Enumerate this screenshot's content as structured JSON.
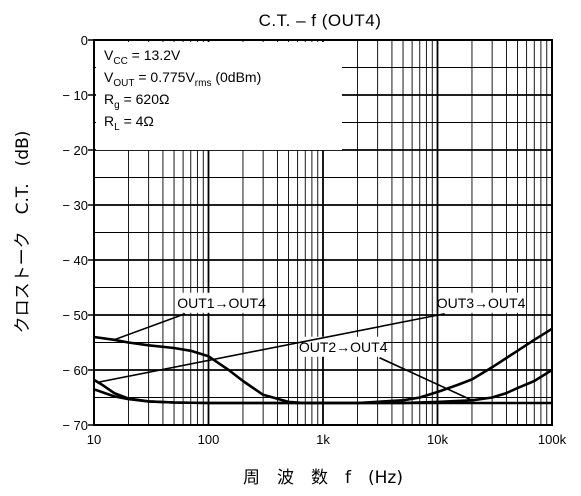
{
  "chart_data": {
    "type": "line",
    "title": "C.T.  –  f (OUT4)",
    "xlabel": "周　波　数　f　(Hz)",
    "ylabel": "クロストーク　C.T.　(dB)",
    "x_scale": "log",
    "xlim": [
      10,
      100000
    ],
    "ylim": [
      -70,
      0
    ],
    "grid": true,
    "x_ticks": [
      {
        "value": 10,
        "label": "10"
      },
      {
        "value": 100,
        "label": "100"
      },
      {
        "value": 1000,
        "label": "1k"
      },
      {
        "value": 10000,
        "label": "10k"
      },
      {
        "value": 100000,
        "label": "100k"
      }
    ],
    "y_ticks": [
      {
        "value": 0,
        "label": "0"
      },
      {
        "value": -10,
        "label": "− 10"
      },
      {
        "value": -20,
        "label": "− 20"
      },
      {
        "value": -30,
        "label": "− 30"
      },
      {
        "value": -40,
        "label": "− 40"
      },
      {
        "value": -50,
        "label": "− 50"
      },
      {
        "value": -60,
        "label": "− 60"
      },
      {
        "value": -70,
        "label": "− 70"
      }
    ],
    "conditions": [
      {
        "main": "V",
        "sub": "CC",
        "rest": " = 13.2V"
      },
      {
        "main": "V",
        "sub": "OUT",
        "rest": " = 0.775V",
        "sub2": "rms",
        "rest2": " (0dBm)"
      },
      {
        "main": "R",
        "sub": "g",
        "rest": " = 620Ω"
      },
      {
        "main": "R",
        "sub": "L",
        "rest": " = 4Ω"
      }
    ],
    "series": [
      {
        "name": "OUT1→OUT4",
        "x": [
          10,
          15,
          20,
          30,
          50,
          70,
          100,
          150,
          200,
          300,
          500,
          700,
          1000,
          2000,
          5000,
          10000,
          20000,
          50000,
          100000
        ],
        "y": [
          -54,
          -54.5,
          -55,
          -55.5,
          -56,
          -56.5,
          -57.5,
          -60,
          -62,
          -64.5,
          -65.8,
          -66,
          -66,
          -66,
          -66,
          -66,
          -66,
          -66,
          -66
        ],
        "annotation_at": [
          15,
          -54.5
        ],
        "label_at": [
          130,
          -48.5
        ]
      },
      {
        "name": "OUT2→OUT4",
        "x": [
          10,
          15,
          20,
          30,
          50,
          100,
          200,
          500,
          1000,
          2000,
          5000,
          10000,
          20000,
          30000,
          40000,
          50000,
          70000,
          100000
        ],
        "y": [
          -63.5,
          -64.8,
          -65.3,
          -65.7,
          -65.9,
          -66,
          -66,
          -66,
          -66,
          -66,
          -66,
          -65.8,
          -65.5,
          -65,
          -64.2,
          -63.3,
          -62,
          -60
        ],
        "annotation_at": [
          20000,
          -65.5
        ],
        "label_at": [
          1500,
          -56.5
        ]
      },
      {
        "name": "OUT3→OUT4",
        "x": [
          10,
          12,
          15,
          20,
          30,
          50,
          100,
          200,
          500,
          1000,
          2000,
          5000,
          7000,
          10000,
          15000,
          20000,
          30000,
          50000,
          70000,
          100000
        ],
        "y": [
          -61.8,
          -62.8,
          -64.2,
          -65.2,
          -65.7,
          -65.9,
          -66,
          -66,
          -66,
          -66,
          -66,
          -65.5,
          -65,
          -64,
          -62.7,
          -61.7,
          -59.5,
          -56.5,
          -54.5,
          -52.5
        ],
        "annotation_at": [
          11,
          -62.2
        ],
        "label_at": [
          24000,
          -48.5
        ]
      }
    ]
  }
}
